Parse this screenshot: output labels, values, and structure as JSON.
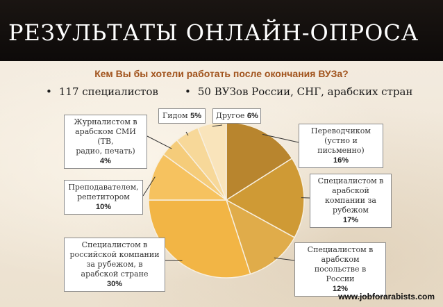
{
  "slide": {
    "title": "РЕЗУЛЬТАТЫ ОНЛАЙН-ОПРОСА",
    "question": "Кем Вы бы хотели работать после окончания ВУЗа?",
    "bullets": [
      "117 специалистов",
      "50 ВУЗов России, СНГ, арабских стран"
    ],
    "footer": "www.jobforarabists.com"
  },
  "chart_data": {
    "type": "pie",
    "title": "Кем Вы бы хотели работать после окончания ВУЗа?",
    "slices": [
      {
        "label": "Переводчиком (устно и письменно)",
        "value": 16,
        "value_label": "16%",
        "color": "#b8852e"
      },
      {
        "label": "Специалистом в арабской компании за рубежом",
        "value": 17,
        "value_label": "17%",
        "color": "#cf9a35"
      },
      {
        "label": "Специалистом в арабском посольстве в России",
        "value": 12,
        "value_label": "12%",
        "color": "#e0ac4a"
      },
      {
        "label": "Специалистом в российской компании за рубежом, в арабской стране",
        "value": 30,
        "value_label": "30%",
        "color": "#f2b545"
      },
      {
        "label": "Преподавателем, репетитором",
        "value": 10,
        "value_label": "10%",
        "color": "#f6c25f"
      },
      {
        "label": "Журналистом в арабском СМИ (ТВ, радио, печать)",
        "value": 4,
        "value_label": "4%",
        "color": "#f5cc7a"
      },
      {
        "label": "Гидом",
        "value": 5,
        "value_label": "5%",
        "color": "#f7d899"
      },
      {
        "label": "Другое",
        "value": 6,
        "value_label": "6%",
        "color": "#f9e4bb"
      }
    ],
    "start_angle_deg": 0,
    "direction": "clockwise"
  },
  "labels": [
    {
      "lines": [
        "Переводчиком",
        "(устно и письменно)"
      ],
      "pct": "16%"
    },
    {
      "lines": [
        "Специалистом в",
        "арабской",
        "компании за",
        "рубежом"
      ],
      "pct": "17%"
    },
    {
      "lines": [
        "Специалистом в",
        "арабском посольстве в",
        "России"
      ],
      "pct": "12%"
    },
    {
      "lines": [
        "Специалистом в",
        "российской компании",
        "за рубежом, в",
        "арабской стране"
      ],
      "pct": "30%"
    },
    {
      "lines": [
        "Преподавателем,",
        "репетитором"
      ],
      "pct": "10%"
    },
    {
      "lines": [
        "Журналистом в",
        "арабском СМИ (ТВ,",
        "радио, печать)"
      ],
      "pct": "4%"
    },
    {
      "lines": [
        "Гидом"
      ],
      "pct": "5%"
    },
    {
      "lines": [
        "Другое"
      ],
      "pct": "6%"
    }
  ]
}
